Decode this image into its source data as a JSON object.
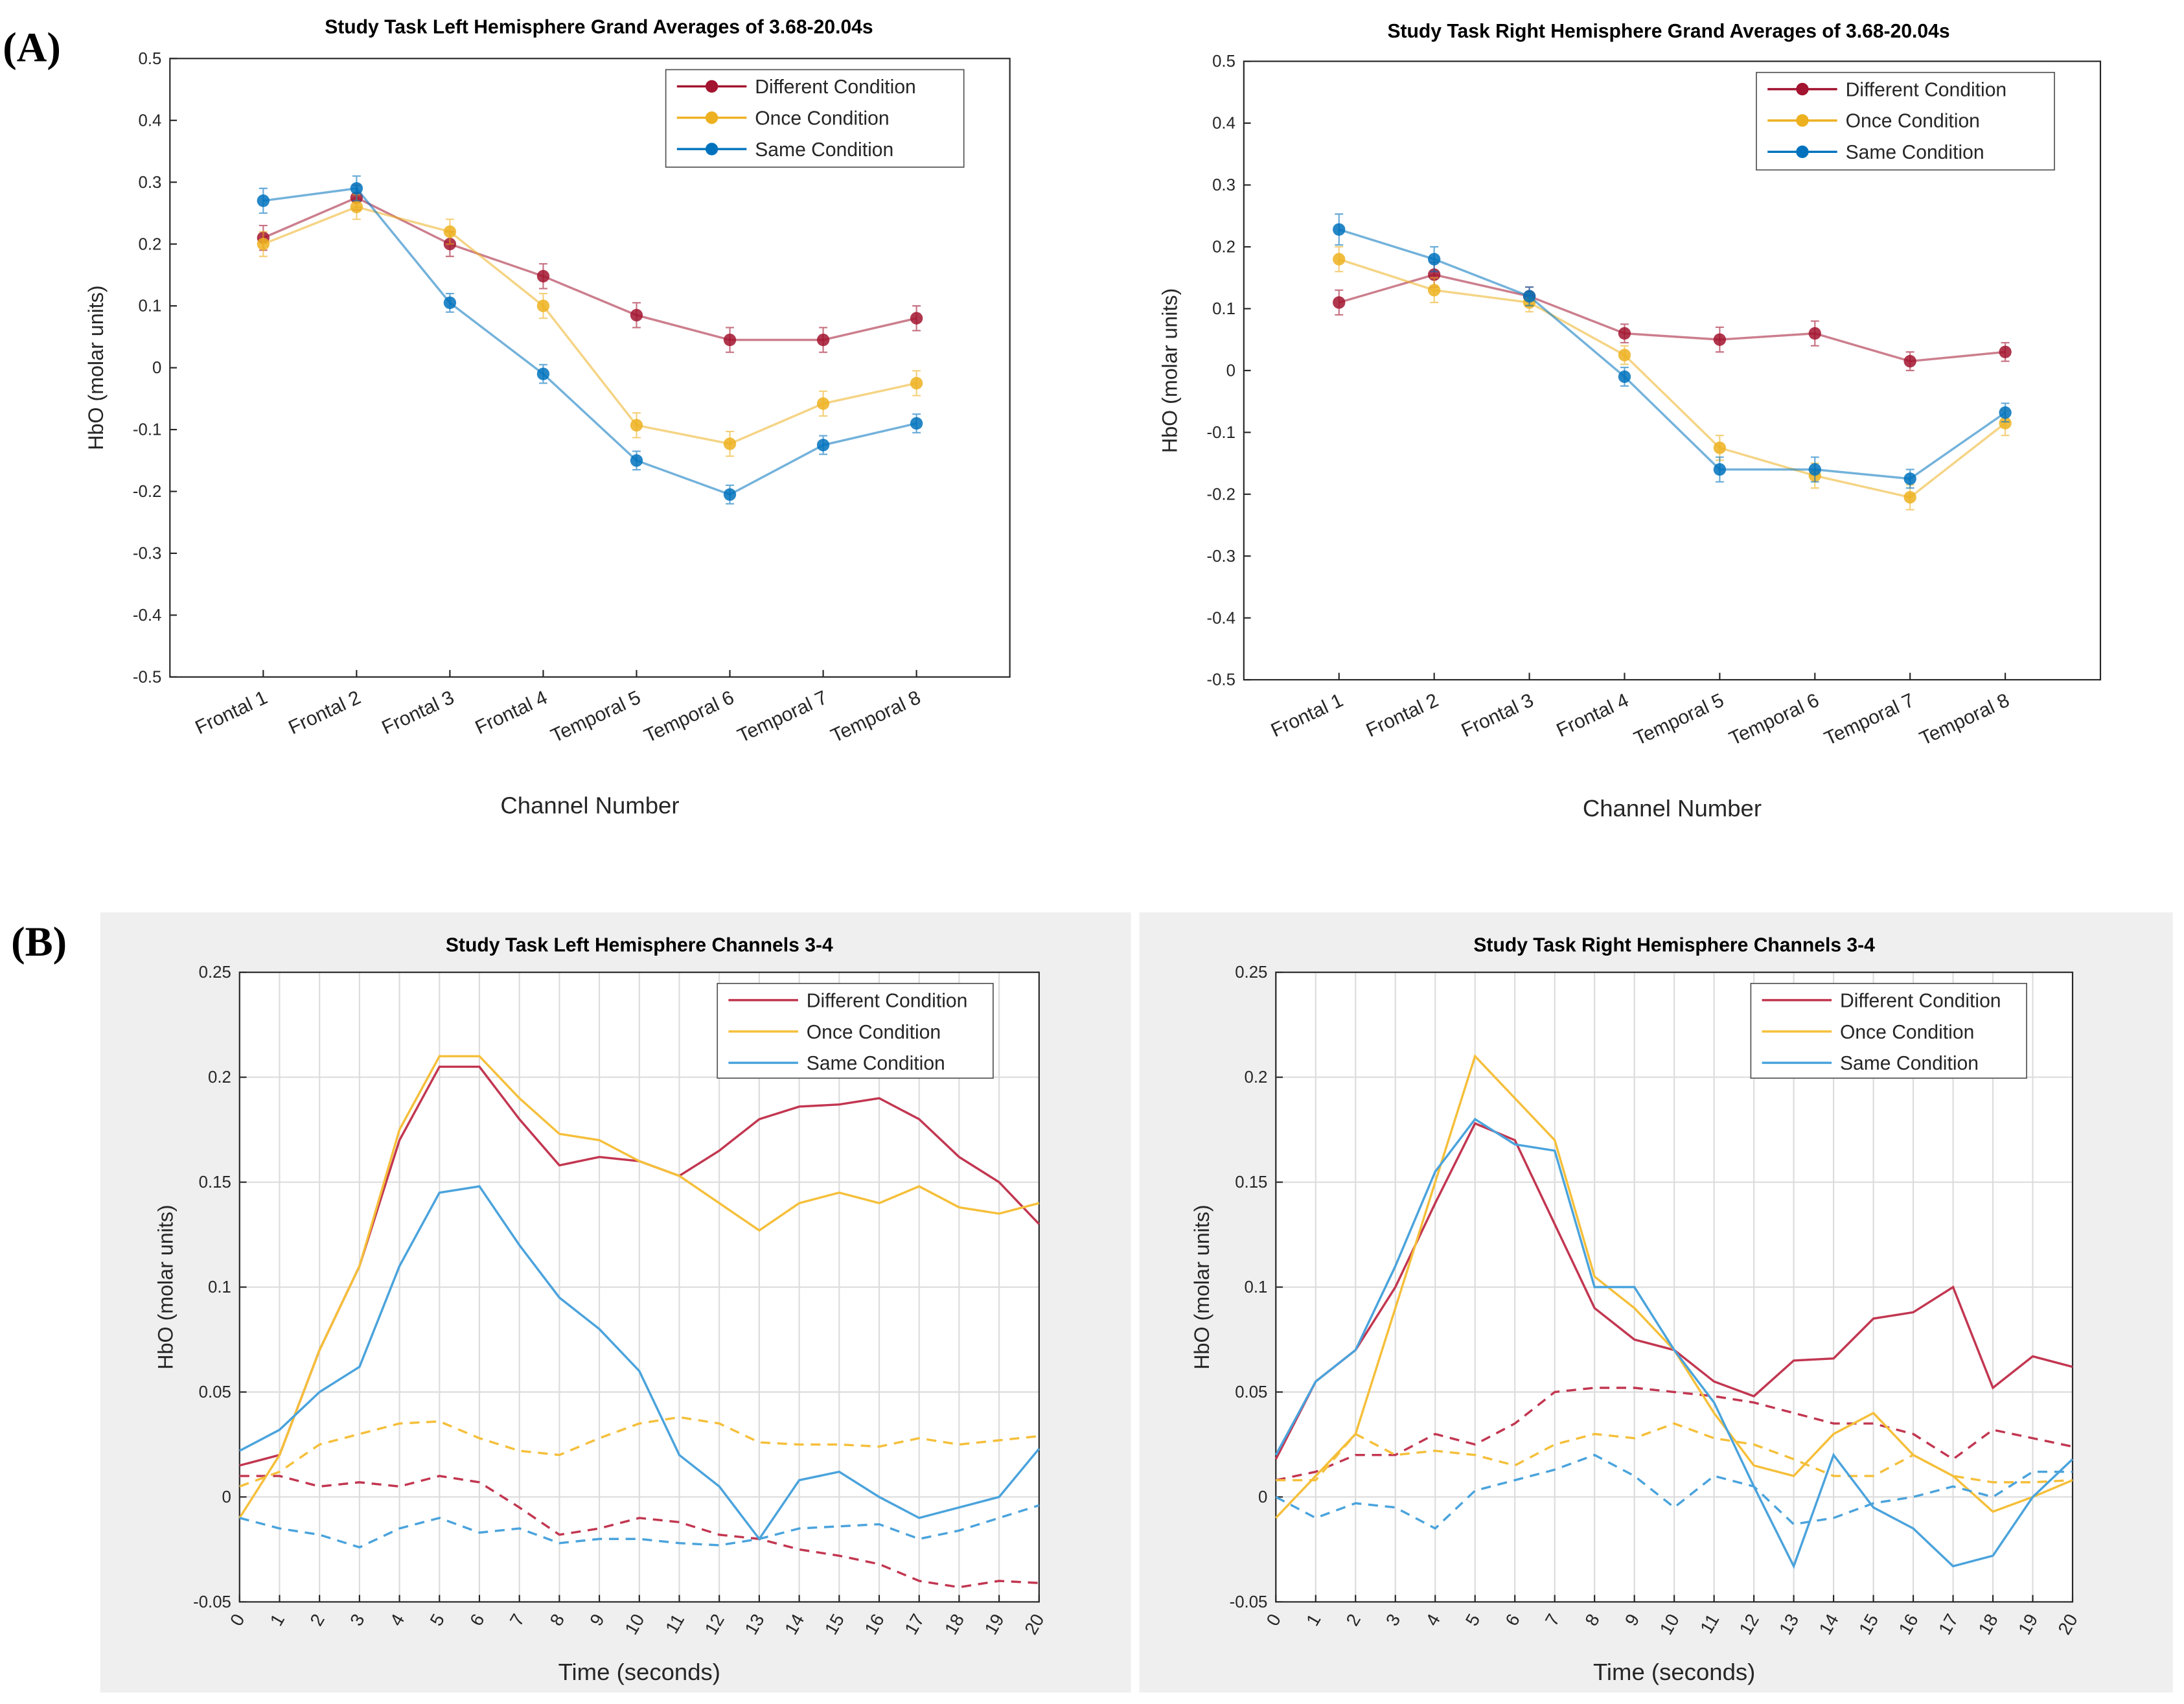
{
  "panel_labels": [
    "(A)",
    "(B)"
  ],
  "chart_data": [
    {
      "type": "line",
      "title": "Study Task Left Hemisphere Grand Averages of 3.68-20.04s",
      "x_label": "Channel Number",
      "y_label": "HbO (molar units)",
      "categories": [
        "Frontal 1",
        "Frontal 2",
        "Frontal 3",
        "Frontal 4",
        "Temporal 5",
        "Temporal 6",
        "Temporal 7",
        "Temporal 8"
      ],
      "ylim": [
        -0.5,
        0.5
      ],
      "yticks": [
        -0.5,
        -0.4,
        -0.3,
        -0.2,
        -0.1,
        0,
        0.1,
        0.2,
        0.3,
        0.4,
        0.5
      ],
      "grid": false,
      "markers": true,
      "legend": "upper right",
      "series": [
        {
          "name": "Different Condition",
          "color": "#a2142f",
          "values": [
            0.21,
            0.275,
            0.2,
            0.148,
            0.085,
            0.045,
            0.045,
            0.08
          ],
          "errors": [
            0.02,
            0.02,
            0.02,
            0.02,
            0.02,
            0.02,
            0.02,
            0.02
          ]
        },
        {
          "name": "Once Condition",
          "color": "#edb120",
          "values": [
            0.2,
            0.26,
            0.22,
            0.1,
            -0.093,
            -0.123,
            -0.058,
            -0.025
          ],
          "errors": [
            0.02,
            0.02,
            0.02,
            0.02,
            0.02,
            0.02,
            0.02,
            0.02
          ]
        },
        {
          "name": "Same Condition",
          "color": "#0072bd",
          "values": [
            0.27,
            0.29,
            0.105,
            -0.01,
            -0.15,
            -0.205,
            -0.125,
            -0.09
          ],
          "errors": [
            0.02,
            0.02,
            0.015,
            0.015,
            0.015,
            0.015,
            0.015,
            0.015
          ]
        }
      ]
    },
    {
      "type": "line",
      "title": "Study Task Right Hemisphere Grand Averages of 3.68-20.04s",
      "x_label": "Channel Number",
      "y_label": "HbO (molar units)",
      "categories": [
        "Frontal 1",
        "Frontal 2",
        "Frontal 3",
        "Frontal 4",
        "Temporal 5",
        "Temporal 6",
        "Temporal 7",
        "Temporal 8"
      ],
      "ylim": [
        -0.5,
        0.5
      ],
      "yticks": [
        -0.5,
        -0.4,
        -0.3,
        -0.2,
        -0.1,
        0,
        0.1,
        0.2,
        0.3,
        0.4,
        0.5
      ],
      "grid": false,
      "markers": true,
      "legend": "upper right",
      "series": [
        {
          "name": "Different Condition",
          "color": "#a2142f",
          "values": [
            0.11,
            0.155,
            0.12,
            0.06,
            0.05,
            0.06,
            0.015,
            0.03
          ],
          "errors": [
            0.02,
            0.02,
            0.015,
            0.015,
            0.02,
            0.02,
            0.015,
            0.015
          ]
        },
        {
          "name": "Once Condition",
          "color": "#edb120",
          "values": [
            0.18,
            0.13,
            0.11,
            0.025,
            -0.125,
            -0.17,
            -0.205,
            -0.085
          ],
          "errors": [
            0.02,
            0.02,
            0.015,
            0.015,
            0.02,
            0.02,
            0.02,
            0.02
          ]
        },
        {
          "name": "Same Condition",
          "color": "#0072bd",
          "values": [
            0.228,
            0.18,
            0.12,
            -0.01,
            -0.16,
            -0.16,
            -0.175,
            -0.068
          ],
          "errors": [
            0.025,
            0.02,
            0.015,
            0.015,
            0.02,
            0.02,
            0.015,
            0.015
          ]
        }
      ]
    },
    {
      "type": "line",
      "title": "Study Task Left Hemisphere Channels 3-4",
      "x_label": "Time (seconds)",
      "y_label": "HbO (molar units)",
      "x": [
        0,
        1,
        2,
        3,
        4,
        5,
        6,
        7,
        8,
        9,
        10,
        11,
        12,
        13,
        14,
        15,
        16,
        17,
        18,
        19,
        20
      ],
      "xlim": [
        0,
        20
      ],
      "xticks": [
        0,
        1,
        2,
        3,
        4,
        5,
        6,
        7,
        8,
        9,
        10,
        11,
        12,
        13,
        14,
        15,
        16,
        17,
        18,
        19,
        20
      ],
      "ylim": [
        -0.05,
        0.25
      ],
      "yticks": [
        -0.05,
        0,
        0.05,
        0.1,
        0.15,
        0.2,
        0.25
      ],
      "grid": true,
      "markers": false,
      "legend": "upper right",
      "series": [
        {
          "name": "Different Condition",
          "color": "#c23650",
          "values": [
            0.015,
            0.02,
            0.07,
            0.11,
            0.17,
            0.205,
            0.205,
            0.18,
            0.158,
            0.162,
            0.16,
            0.153,
            0.165,
            0.18,
            0.186,
            0.187,
            0.19,
            0.18,
            0.162,
            0.15,
            0.13
          ],
          "dashed_values": [
            0.01,
            0.01,
            0.005,
            0.007,
            0.005,
            0.01,
            0.007,
            -0.005,
            -0.018,
            -0.015,
            -0.01,
            -0.012,
            -0.018,
            -0.02,
            -0.025,
            -0.028,
            -0.032,
            -0.04,
            -0.043,
            -0.04,
            -0.041
          ]
        },
        {
          "name": "Once Condition",
          "color": "#f5bf3a",
          "values": [
            -0.01,
            0.02,
            0.07,
            0.11,
            0.175,
            0.21,
            0.21,
            0.19,
            0.173,
            0.17,
            0.16,
            0.153,
            0.14,
            0.127,
            0.14,
            0.145,
            0.14,
            0.148,
            0.138,
            0.135,
            0.14
          ],
          "dashed_values": [
            0.005,
            0.012,
            0.025,
            0.03,
            0.035,
            0.036,
            0.028,
            0.022,
            0.02,
            0.028,
            0.035,
            0.038,
            0.035,
            0.026,
            0.025,
            0.025,
            0.024,
            0.028,
            0.025,
            0.027,
            0.029
          ]
        },
        {
          "name": "Same Condition",
          "color": "#4aa3dc",
          "values": [
            0.022,
            0.032,
            0.05,
            0.062,
            0.11,
            0.145,
            0.148,
            0.12,
            0.095,
            0.08,
            0.06,
            0.02,
            0.005,
            -0.02,
            0.008,
            0.012,
            0.0,
            -0.01,
            -0.005,
            0.0,
            0.023
          ],
          "dashed_values": [
            -0.01,
            -0.015,
            -0.018,
            -0.024,
            -0.015,
            -0.01,
            -0.017,
            -0.015,
            -0.022,
            -0.02,
            -0.02,
            -0.022,
            -0.023,
            -0.02,
            -0.015,
            -0.014,
            -0.013,
            -0.02,
            -0.016,
            -0.01,
            -0.004
          ]
        }
      ]
    },
    {
      "type": "line",
      "title": "Study Task Right Hemisphere Channels 3-4",
      "x_label": "Time (seconds)",
      "y_label": "HbO (molar units)",
      "x": [
        0,
        1,
        2,
        3,
        4,
        5,
        6,
        7,
        8,
        9,
        10,
        11,
        12,
        13,
        14,
        15,
        16,
        17,
        18,
        19,
        20
      ],
      "xlim": [
        0,
        20
      ],
      "xticks": [
        0,
        1,
        2,
        3,
        4,
        5,
        6,
        7,
        8,
        9,
        10,
        11,
        12,
        13,
        14,
        15,
        16,
        17,
        18,
        19,
        20
      ],
      "ylim": [
        -0.05,
        0.25
      ],
      "yticks": [
        -0.05,
        0,
        0.05,
        0.1,
        0.15,
        0.2,
        0.25
      ],
      "grid": true,
      "markers": false,
      "legend": "upper right",
      "series": [
        {
          "name": "Different Condition",
          "color": "#c23650",
          "values": [
            0.018,
            0.055,
            0.07,
            0.1,
            0.14,
            0.178,
            0.17,
            0.13,
            0.09,
            0.075,
            0.07,
            0.055,
            0.048,
            0.065,
            0.066,
            0.085,
            0.088,
            0.1,
            0.052,
            0.067,
            0.062
          ],
          "dashed_values": [
            0.008,
            0.012,
            0.02,
            0.02,
            0.03,
            0.025,
            0.035,
            0.05,
            0.052,
            0.052,
            0.05,
            0.048,
            0.045,
            0.04,
            0.035,
            0.035,
            0.03,
            0.018,
            0.032,
            0.028,
            0.024
          ]
        },
        {
          "name": "Once Condition",
          "color": "#f5bf3a",
          "values": [
            -0.01,
            0.01,
            0.03,
            0.09,
            0.15,
            0.21,
            0.19,
            0.17,
            0.105,
            0.09,
            0.07,
            0.04,
            0.015,
            0.01,
            0.03,
            0.04,
            0.02,
            0.01,
            -0.007,
            0.0,
            0.008
          ],
          "dashed_values": [
            0.008,
            0.008,
            0.03,
            0.02,
            0.022,
            0.02,
            0.015,
            0.025,
            0.03,
            0.028,
            0.035,
            0.028,
            0.025,
            0.018,
            0.01,
            0.01,
            0.02,
            0.01,
            0.007,
            0.007,
            0.008
          ]
        },
        {
          "name": "Same Condition",
          "color": "#4aa3dc",
          "values": [
            0.02,
            0.055,
            0.07,
            0.11,
            0.155,
            0.18,
            0.168,
            0.165,
            0.1,
            0.1,
            0.07,
            0.045,
            0.005,
            -0.033,
            0.02,
            -0.005,
            -0.015,
            -0.033,
            -0.028,
            0.0,
            0.018
          ],
          "dashed_values": [
            0.0,
            -0.01,
            -0.003,
            -0.005,
            -0.015,
            0.003,
            0.008,
            0.013,
            0.02,
            0.01,
            -0.005,
            0.01,
            0.005,
            -0.013,
            -0.01,
            -0.003,
            0.0,
            0.005,
            0.0,
            0.012,
            0.012
          ]
        }
      ]
    }
  ]
}
